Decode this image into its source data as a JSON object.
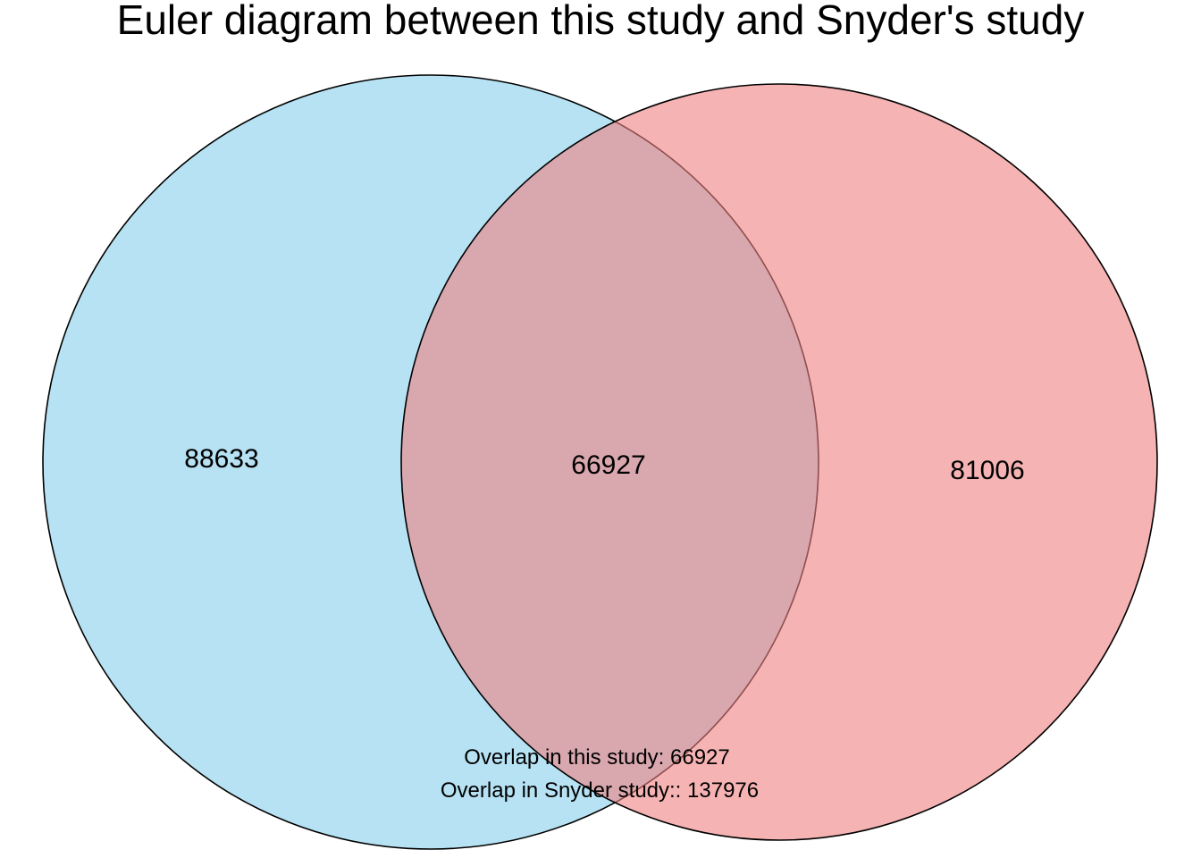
{
  "title": "Euler diagram between this study and Snyder's study",
  "sets": [
    {
      "id": "left",
      "fill": "#87CEEB",
      "stroke": "#000000"
    },
    {
      "id": "right",
      "fill": "#F08080",
      "stroke": "#000000"
    }
  ],
  "fill_opacity": 0.6,
  "regions": {
    "left_only": "88633",
    "overlap": "66927",
    "right_only": "81006"
  },
  "notes": [
    "Overlap in this study: 66927",
    "Overlap in Snyder study:: 137976"
  ]
}
